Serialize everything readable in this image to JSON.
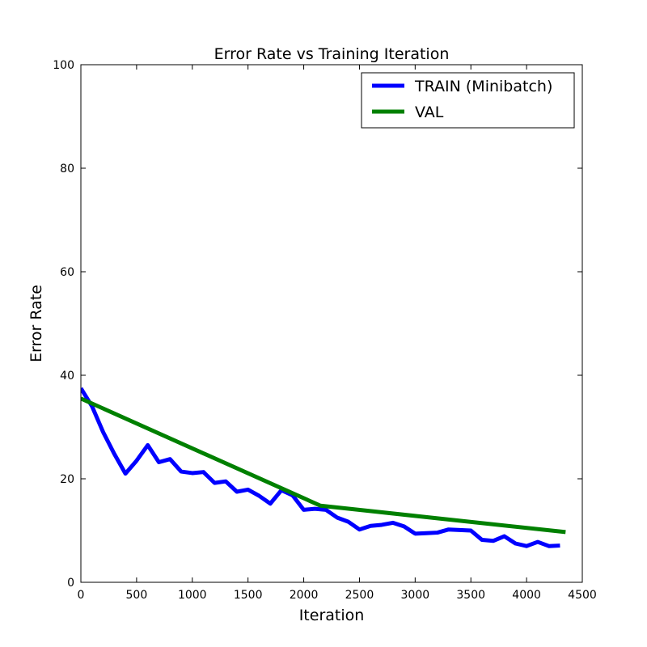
{
  "chart_data": {
    "type": "line",
    "title": "Error Rate vs Training Iteration",
    "xlabel": "Iteration",
    "ylabel": "Error Rate",
    "xlim": [
      0,
      4500
    ],
    "ylim": [
      0,
      100
    ],
    "xticks": [
      "0",
      "500",
      "1000",
      "1500",
      "2000",
      "2500",
      "3000",
      "3500",
      "4000",
      "4500"
    ],
    "yticks": [
      "0",
      "20",
      "40",
      "60",
      "80",
      "100"
    ],
    "grid": false,
    "legend_position": "top-right",
    "series": [
      {
        "name": "TRAIN (Minibatch)",
        "color": "#0000ff",
        "x": [
          0,
          100,
          200,
          300,
          400,
          500,
          600,
          700,
          800,
          900,
          1000,
          1100,
          1200,
          1300,
          1400,
          1500,
          1600,
          1700,
          1800,
          1900,
          2000,
          2100,
          2200,
          2300,
          2400,
          2500,
          2600,
          2700,
          2800,
          2900,
          3000,
          3100,
          3200,
          3300,
          3400,
          3500,
          3600,
          3700,
          3800,
          3900,
          4000,
          4100,
          4200,
          4300
        ],
        "y": [
          37.5,
          34,
          29,
          24.8,
          21,
          23.5,
          26.5,
          23.2,
          23.8,
          21.4,
          21.1,
          21.3,
          19.2,
          19.5,
          17.5,
          17.9,
          16.7,
          15.2,
          17.8,
          16.8,
          14,
          14.2,
          14,
          12.5,
          11.7,
          10.2,
          10.9,
          11.1,
          11.5,
          10.8,
          9.4,
          9.5,
          9.6,
          10.2,
          10.1,
          10,
          8.2,
          8,
          8.9,
          7.5,
          7,
          7.8,
          7,
          7.1
        ]
      },
      {
        "name": "VAL",
        "color": "#008000",
        "x": [
          0,
          2150,
          4350
        ],
        "y": [
          35.5,
          14.8,
          9.7
        ]
      }
    ]
  }
}
